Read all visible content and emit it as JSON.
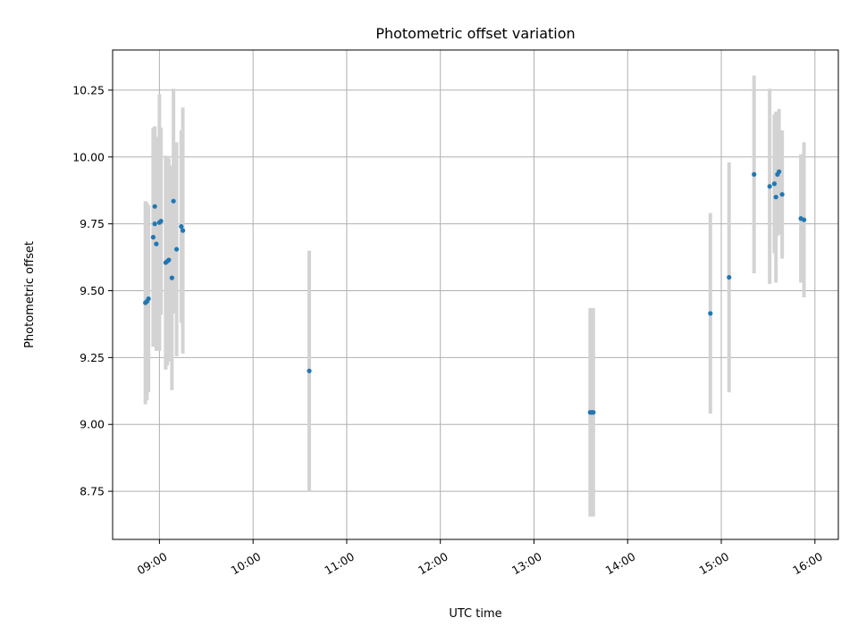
{
  "chart_data": {
    "type": "scatter",
    "title": "Photometric offset variation",
    "xlabel": "UTC time",
    "ylabel": "Photometric offset",
    "x_unit": "time (HH:MM)",
    "xlim": [
      "08:30",
      "16:15"
    ],
    "ylim": [
      8.57,
      10.4
    ],
    "x_ticks": [
      "09:00",
      "10:00",
      "11:00",
      "12:00",
      "13:00",
      "14:00",
      "15:00",
      "16:00"
    ],
    "y_ticks": [
      "8.75",
      "9.00",
      "9.25",
      "9.50",
      "9.75",
      "10.00",
      "10.25"
    ],
    "grid": true,
    "colors": {
      "point": "#1f77b4",
      "errorbar": "#d3d3d3",
      "grid": "#b0b0b0"
    },
    "series": [
      {
        "points": [
          {
            "x": "08:51",
            "y": 9.455,
            "err": 0.38
          },
          {
            "x": "08:52",
            "y": 9.46,
            "err": 0.37
          },
          {
            "x": "08:53",
            "y": 9.47,
            "err": 0.35
          },
          {
            "x": "08:56",
            "y": 9.7,
            "err": 0.41
          },
          {
            "x": "08:57",
            "y": 9.815,
            "err": 0.3
          },
          {
            "x": "08:57",
            "y": 9.75,
            "err": 0.35
          },
          {
            "x": "08:58",
            "y": 9.675,
            "err": 0.4
          },
          {
            "x": "09:00",
            "y": 9.755,
            "err": 0.48
          },
          {
            "x": "09:01",
            "y": 9.76,
            "err": 0.35
          },
          {
            "x": "09:04",
            "y": 9.605,
            "err": 0.4
          },
          {
            "x": "09:05",
            "y": 9.61,
            "err": 0.39
          },
          {
            "x": "09:06",
            "y": 9.615,
            "err": 0.38
          },
          {
            "x": "09:08",
            "y": 9.548,
            "err": 0.42
          },
          {
            "x": "09:09",
            "y": 9.835,
            "err": 0.42
          },
          {
            "x": "09:11",
            "y": 9.655,
            "err": 0.4
          },
          {
            "x": "09:14",
            "y": 9.74,
            "err": 0.36
          },
          {
            "x": "09:15",
            "y": 9.725,
            "err": 0.46
          },
          {
            "x": "10:36",
            "y": 9.2,
            "err": 0.45
          },
          {
            "x": "13:36",
            "y": 9.045,
            "err": 0.39
          },
          {
            "x": "13:37",
            "y": 9.045,
            "err": 0.39
          },
          {
            "x": "13:38",
            "y": 9.045,
            "err": 0.39
          },
          {
            "x": "14:53",
            "y": 9.415,
            "err": 0.375
          },
          {
            "x": "15:05",
            "y": 9.55,
            "err": 0.43
          },
          {
            "x": "15:21",
            "y": 9.935,
            "err": 0.37
          },
          {
            "x": "15:31",
            "y": 9.89,
            "err": 0.365
          },
          {
            "x": "15:34",
            "y": 9.9,
            "err": 0.26
          },
          {
            "x": "15:35",
            "y": 9.85,
            "err": 0.32
          },
          {
            "x": "15:36",
            "y": 9.935,
            "err": 0.23
          },
          {
            "x": "15:37",
            "y": 9.945,
            "err": 0.235
          },
          {
            "x": "15:39",
            "y": 9.86,
            "err": 0.24
          },
          {
            "x": "15:51",
            "y": 9.77,
            "err": 0.24
          },
          {
            "x": "15:53",
            "y": 9.765,
            "err": 0.29
          }
        ]
      }
    ]
  }
}
